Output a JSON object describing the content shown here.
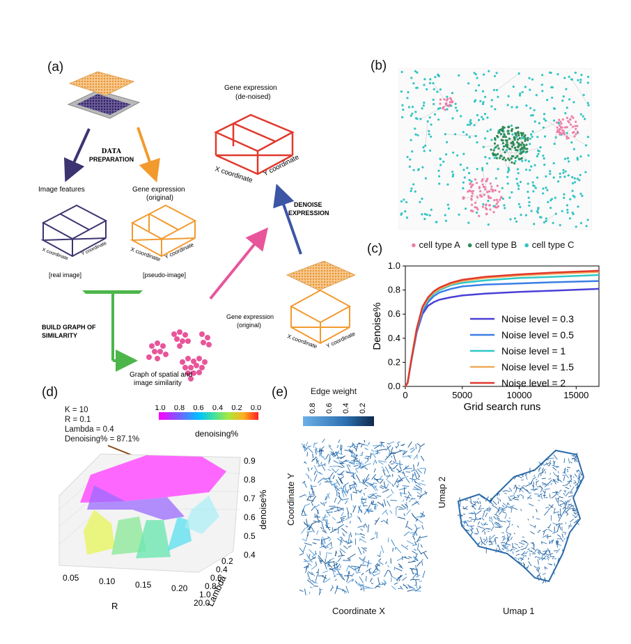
{
  "panels": {
    "a": "(a)",
    "b": "(b)",
    "c": "(c)",
    "d": "(d)",
    "e": "(e)"
  },
  "panel_a": {
    "data_prep": [
      "DATA",
      "PREPARATION"
    ],
    "image_features": "Image features",
    "gene_expr_orig": [
      "Gene expression",
      "(original)"
    ],
    "x_coord": "X coordinate",
    "y_coord": "Y coordinate",
    "real_image": "[real image]",
    "pseudo_image": "[pseudo-image]",
    "build_graph": [
      "BUILD GRAPH OF",
      "SIMILARITY"
    ],
    "graph_label": [
      "Graph of spatial and",
      "image similarity"
    ],
    "gene_expr_orig2": [
      "Gene expression",
      "(original)"
    ],
    "denoise": [
      "DENOISE",
      "EXPRESSION"
    ],
    "gene_expr_denoised": [
      "Gene expression",
      "(de-noised)"
    ]
  },
  "panel_b": {
    "legend": [
      {
        "label": "cell type A",
        "color": "#ee7fa8"
      },
      {
        "label": "cell type B",
        "color": "#2e8b57"
      },
      {
        "label": "cell type C",
        "color": "#33c4c4"
      }
    ]
  },
  "chart_data": [
    {
      "type": "line",
      "xlabel": "Grid search runs",
      "ylabel": "Denoise%",
      "xlim": [
        0,
        17000
      ],
      "ylim": [
        0,
        1.0
      ],
      "xticks": [
        0,
        5000,
        10000,
        15000
      ],
      "yticks": [
        0.0,
        0.2,
        0.4,
        0.6,
        0.8,
        1.0
      ],
      "legend_position": "center-right",
      "x": [
        0,
        200,
        500,
        1000,
        1500,
        2000,
        2500,
        3000,
        4000,
        5000,
        7000,
        10000,
        13000,
        17000
      ],
      "series": [
        {
          "name": "Noise level = 0.3",
          "color": "#4b3fd6",
          "values": [
            0,
            0.03,
            0.2,
            0.45,
            0.6,
            0.67,
            0.7,
            0.72,
            0.74,
            0.755,
            0.77,
            0.785,
            0.795,
            0.81
          ]
        },
        {
          "name": "Noise level = 0.5",
          "color": "#3a7ee6",
          "values": [
            0,
            0.03,
            0.2,
            0.46,
            0.62,
            0.7,
            0.75,
            0.78,
            0.81,
            0.83,
            0.845,
            0.855,
            0.865,
            0.875
          ]
        },
        {
          "name": "Noise level = 1",
          "color": "#2fc7c7",
          "values": [
            0,
            0.03,
            0.2,
            0.47,
            0.64,
            0.72,
            0.77,
            0.8,
            0.84,
            0.86,
            0.88,
            0.9,
            0.91,
            0.925
          ]
        },
        {
          "name": "Noise level = 1.5",
          "color": "#f1a95a",
          "values": [
            0,
            0.03,
            0.21,
            0.48,
            0.65,
            0.73,
            0.78,
            0.81,
            0.85,
            0.875,
            0.9,
            0.92,
            0.935,
            0.95
          ]
        },
        {
          "name": "Noise level = 2",
          "color": "#e0392c",
          "values": [
            0,
            0.03,
            0.21,
            0.48,
            0.66,
            0.74,
            0.79,
            0.82,
            0.86,
            0.885,
            0.91,
            0.93,
            0.945,
            0.96
          ]
        }
      ]
    },
    {
      "type": "heatmap",
      "note_lines": [
        "K = 10",
        "R = 0.1",
        "Lambda = 0.4",
        "Denoising% = 87.1%"
      ],
      "colorbar_label": "denoising%",
      "colorbar_ticks": [
        "1.0",
        "0.8",
        "0.6",
        "0.4",
        "0.2",
        "0.0"
      ],
      "xlabel": "R",
      "ylabel": "Lambda",
      "zlabel": "denoise%",
      "xticks": [
        "0.05",
        "0.10",
        "0.15",
        "0.20"
      ],
      "yticks": [
        "0.2",
        "0.4",
        "0.6",
        "0.8",
        "1.0",
        "20.0"
      ],
      "zticks": [
        "0.9",
        "0.8",
        "0.7",
        "0.6",
        "0.5",
        "0.4"
      ]
    },
    {
      "type": "scatter",
      "colorbar_label": "Edge weight",
      "colorbar_ticks": [
        "0.8",
        "0.6",
        "0.4",
        "0.2"
      ],
      "left_xlabel": "Coordinate X",
      "left_ylabel": "Coordinate Y",
      "right_xlabel": "Umap 1",
      "right_ylabel": "Umap 2"
    }
  ]
}
